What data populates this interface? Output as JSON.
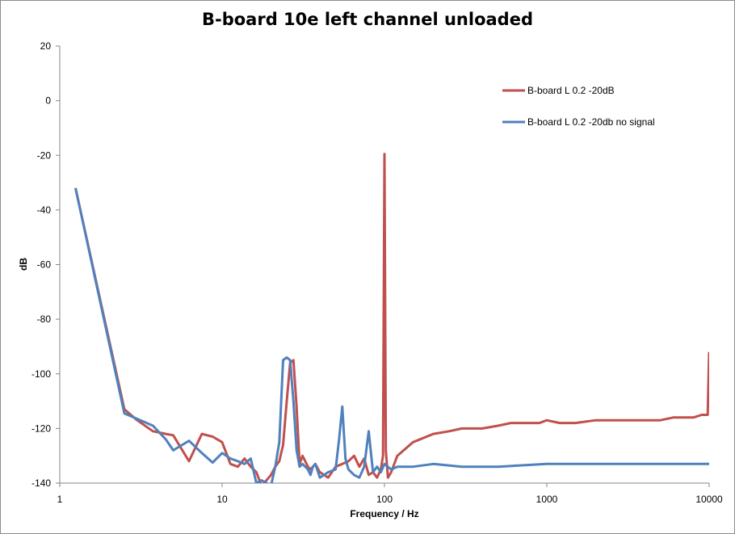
{
  "chart_data": {
    "type": "line",
    "title": "B-board 10e left channel unloaded",
    "xlabel": "Frequency / Hz",
    "ylabel": "dB",
    "xscale": "log",
    "xlim": [
      1,
      10000
    ],
    "ylim": [
      -140,
      20
    ],
    "x_ticks": [
      1,
      10,
      100,
      1000,
      10000
    ],
    "x_tick_labels": [
      "1",
      "10",
      "100",
      "1000",
      "10000"
    ],
    "y_ticks": [
      20,
      0,
      -20,
      -40,
      -60,
      -80,
      -100,
      -120,
      -140
    ],
    "y_tick_labels": [
      "20",
      "0",
      "-20",
      "-40",
      "-60",
      "-80",
      "-100",
      "-120",
      "-140"
    ],
    "grid": false,
    "legend_position": "top-right",
    "series": [
      {
        "name": "B-board L 0.2 -20dB",
        "color": "#c0504d",
        "x": [
          1.25,
          2.5,
          3.0,
          3.75,
          4.5,
          5.0,
          6.25,
          7.5,
          8.75,
          10.0,
          11.25,
          12.5,
          13.75,
          15.0,
          16.25,
          17.5,
          18.75,
          20.0,
          21.25,
          22.5,
          23.75,
          25.0,
          26.25,
          27.5,
          28.75,
          30.0,
          31.25,
          32.5,
          33.75,
          35.0,
          36.25,
          37.5,
          40.0,
          42.5,
          45.0,
          50.0,
          55.0,
          60.0,
          65.0,
          70.0,
          75.0,
          80.0,
          85.0,
          90.0,
          95.0,
          98.0,
          100.0,
          102.0,
          105.0,
          110.0,
          120.0,
          150.0,
          200.0,
          250.0,
          300.0,
          400.0,
          500.0,
          600.0,
          700.0,
          800.0,
          900.0,
          1000.0,
          1200.0,
          1500.0,
          2000.0,
          2500.0,
          3000.0,
          4000.0,
          5000.0,
          6000.0,
          7000.0,
          8000.0,
          9000.0,
          9800.0,
          10000.0
        ],
        "y": [
          -32,
          -113,
          -117,
          -121,
          -122,
          -122.5,
          -132,
          -122,
          -123,
          -125,
          -133,
          -134,
          -131,
          -134,
          -136,
          -141,
          -139,
          -137,
          -134,
          -132,
          -126,
          -110,
          -96,
          -95,
          -112,
          -133,
          -130,
          -132,
          -134,
          -135,
          -134,
          -133,
          -136,
          -137,
          -138,
          -134,
          -133,
          -132,
          -130,
          -134,
          -131,
          -137,
          -136,
          -138,
          -135,
          -130,
          -19.5,
          -128,
          -138,
          -136,
          -130,
          -125,
          -122,
          -121,
          -120,
          -120,
          -119,
          -118,
          -118,
          -118,
          -118,
          -117,
          -118,
          -118,
          -117,
          -117,
          -117,
          -117,
          -117,
          -116,
          -116,
          -116,
          -115,
          -115,
          -92
        ]
      },
      {
        "name": "B-board L 0.2 -20db no signal",
        "color": "#4f81bd",
        "x": [
          1.25,
          2.5,
          3.0,
          3.75,
          4.5,
          5.0,
          6.25,
          7.5,
          8.75,
          10.0,
          11.25,
          12.5,
          13.75,
          15.0,
          16.25,
          17.5,
          18.75,
          20.0,
          21.25,
          22.5,
          23.75,
          25.0,
          26.25,
          27.5,
          28.75,
          30.0,
          31.25,
          32.5,
          33.75,
          35.0,
          36.25,
          37.5,
          40.0,
          42.5,
          45.0,
          50.0,
          52.5,
          55.0,
          57.5,
          60.0,
          65.0,
          70.0,
          75.0,
          80.0,
          85.0,
          90.0,
          95.0,
          100.0,
          110.0,
          120.0,
          150.0,
          200.0,
          300.0,
          500.0,
          1000.0,
          2000.0,
          5000.0,
          10000.0
        ],
        "y": [
          -32,
          -114.5,
          -116.5,
          -119,
          -124,
          -128,
          -124.5,
          -129,
          -132.5,
          -129,
          -131,
          -132,
          -133,
          -131,
          -140,
          -139,
          -140,
          -141,
          -134,
          -125,
          -95,
          -94,
          -95,
          -110,
          -128,
          -134,
          -133,
          -134,
          -135,
          -137,
          -134,
          -133,
          -138,
          -137,
          -136,
          -135,
          -124,
          -112,
          -131,
          -135,
          -137,
          -138,
          -134,
          -121,
          -136,
          -134,
          -136,
          -133,
          -135,
          -134,
          -134,
          -133,
          -134,
          -134,
          -133,
          -133,
          -133,
          -133
        ]
      }
    ]
  }
}
